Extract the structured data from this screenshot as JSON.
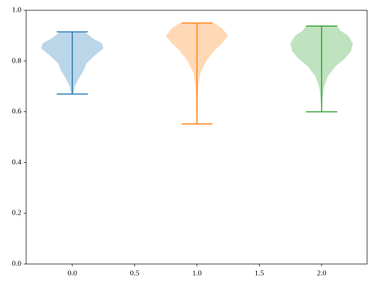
{
  "chart_data": {
    "type": "violin",
    "xlim": [
      -0.37,
      2.365
    ],
    "ylim": [
      0,
      1
    ],
    "xticks": [
      {
        "value": 0,
        "label": "0.0"
      },
      {
        "value": 0.5,
        "label": "0.5"
      },
      {
        "value": 1,
        "label": "1.0"
      },
      {
        "value": 1.5,
        "label": "1.5"
      },
      {
        "value": 2,
        "label": "2.0"
      }
    ],
    "yticks": [
      {
        "value": 0,
        "label": "0.0"
      },
      {
        "value": 0.2,
        "label": "0.2"
      },
      {
        "value": 0.4,
        "label": "0.4"
      },
      {
        "value": 0.6,
        "label": "0.6"
      },
      {
        "value": 0.8,
        "label": "0.8"
      },
      {
        "value": 1,
        "label": "1.0"
      }
    ],
    "series": [
      {
        "color": "#1f77b4",
        "position": 0,
        "min": 0.67,
        "max": 0.915,
        "density_y": [
          0.67,
          0.7,
          0.73,
          0.76,
          0.79,
          0.82,
          0.85,
          0.87,
          0.89,
          0.91,
          0.915
        ],
        "density": [
          0.03,
          0.08,
          0.2,
          0.35,
          0.45,
          0.7,
          1.0,
          0.95,
          0.65,
          0.45,
          0.4
        ]
      },
      {
        "color": "#ff7f0e",
        "position": 1,
        "min": 0.552,
        "max": 0.95,
        "density_y": [
          0.552,
          0.6,
          0.65,
          0.7,
          0.75,
          0.8,
          0.84,
          0.87,
          0.9,
          0.93,
          0.95
        ],
        "density": [
          0.01,
          0.02,
          0.03,
          0.05,
          0.1,
          0.3,
          0.55,
          0.8,
          1.0,
          0.8,
          0.55
        ]
      },
      {
        "color": "#2ca02c",
        "position": 2,
        "min": 0.6,
        "max": 0.938,
        "density_y": [
          0.6,
          0.65,
          0.7,
          0.74,
          0.78,
          0.81,
          0.84,
          0.87,
          0.9,
          0.92,
          0.938
        ],
        "density": [
          0.01,
          0.03,
          0.08,
          0.2,
          0.45,
          0.75,
          0.95,
          1.0,
          0.85,
          0.6,
          0.5
        ]
      }
    ]
  }
}
